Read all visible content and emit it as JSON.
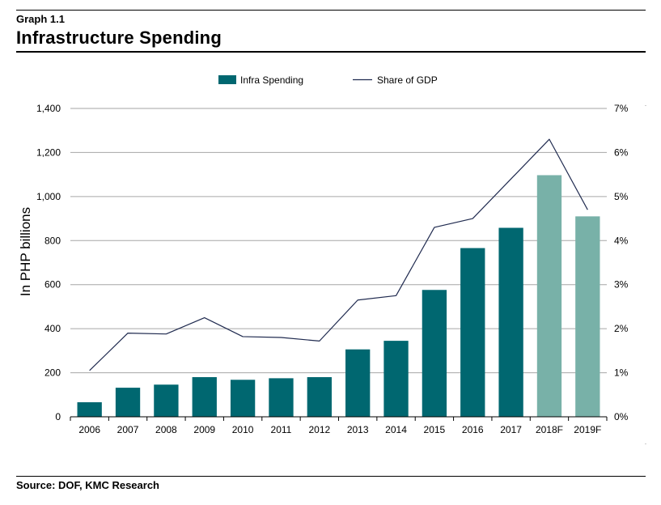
{
  "header": {
    "label": "Graph 1.1",
    "title": "Infrastructure Spending"
  },
  "source": "Source: DOF, KMC Research",
  "colors": {
    "actual_bar": "#006770",
    "forecast_bar": "#78b1a8",
    "line": "#1f2a4f",
    "grid": "#a6a6a6"
  },
  "chart_data": {
    "type": "bar",
    "title": "",
    "categories": [
      "2006",
      "2007",
      "2008",
      "2009",
      "2010",
      "2011",
      "2012",
      "2013",
      "2014",
      "2015",
      "2016",
      "2017",
      "2018F",
      "2019F"
    ],
    "ylabel": "In PHP billions",
    "ylim": [
      0,
      1400
    ],
    "yticks": [
      "0",
      "200",
      "400",
      "600",
      "800",
      "1,000",
      "1,200",
      "1,400"
    ],
    "y2lim": [
      0,
      7
    ],
    "y2ticks": [
      "0%",
      "1%",
      "2%",
      "3%",
      "4%",
      "5%",
      "6%",
      "7%"
    ],
    "grid": true,
    "legend": "top",
    "series": [
      {
        "name": "Infra Spending",
        "type": "bar",
        "axis": "left",
        "values": [
          66,
          132,
          146,
          180,
          168,
          175,
          180,
          306,
          345,
          576,
          766,
          858,
          1097,
          910
        ],
        "forecast": [
          false,
          false,
          false,
          false,
          false,
          false,
          false,
          false,
          false,
          false,
          false,
          false,
          true,
          true
        ]
      },
      {
        "name": "Share of GDP",
        "type": "line",
        "axis": "right",
        "values": [
          1.05,
          1.9,
          1.88,
          2.25,
          1.82,
          1.8,
          1.72,
          2.65,
          2.75,
          4.3,
          4.5,
          5.4,
          6.3,
          4.7
        ]
      }
    ]
  }
}
